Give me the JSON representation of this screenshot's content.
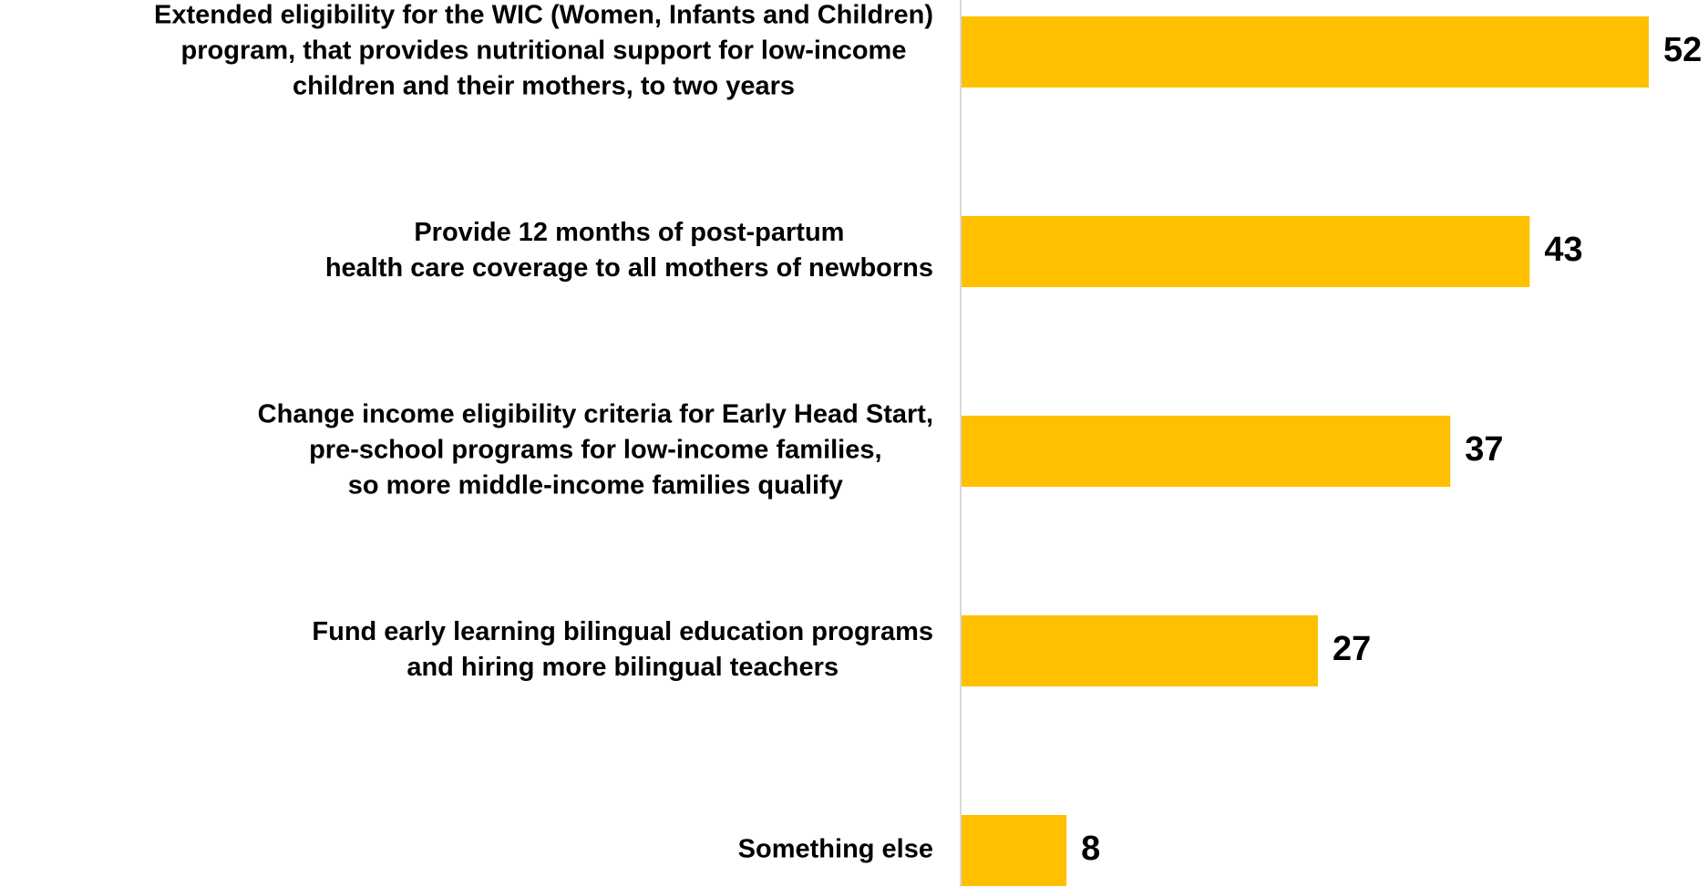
{
  "chart_data": {
    "type": "bar",
    "orientation": "horizontal",
    "categories": [
      [
        "Extended eligibility for the WIC (Women, Infants and Children)",
        "program, that provides nutritional support for low-income",
        "children and their mothers, to two years"
      ],
      [
        "Provide 12 months of post-partum",
        "health care coverage to all mothers of newborns"
      ],
      [
        "Change income eligibility criteria for Early Head Start,",
        "pre-school programs for low-income families,",
        "so more middle-income families qualify"
      ],
      [
        "Fund early learning bilingual education programs",
        "and hiring more bilingual teachers"
      ],
      [
        "Something else"
      ]
    ],
    "values": [
      52,
      43,
      37,
      27,
      8
    ],
    "value_labels": [
      "52",
      "43",
      "37",
      "27",
      "8"
    ],
    "xlim": [
      0,
      52
    ],
    "bar_color": "#FFC000",
    "axis_color": "#D9D9D9",
    "grid": false,
    "legend": "none"
  }
}
